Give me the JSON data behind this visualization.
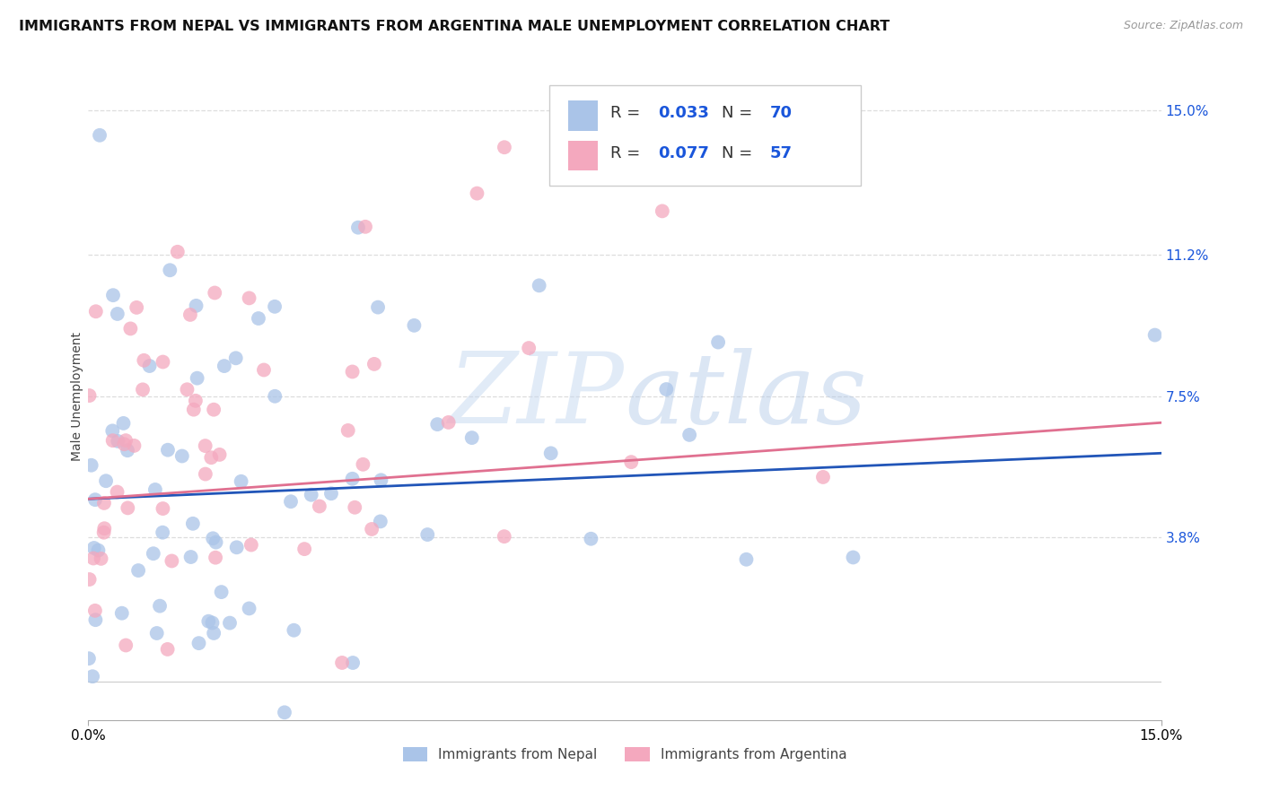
{
  "title": "IMMIGRANTS FROM NEPAL VS IMMIGRANTS FROM ARGENTINA MALE UNEMPLOYMENT CORRELATION CHART",
  "source": "Source: ZipAtlas.com",
  "ylabel": "Male Unemployment",
  "xlim": [
    0.0,
    0.15
  ],
  "ylim": [
    -0.01,
    0.16
  ],
  "xticks": [
    0.0,
    0.15
  ],
  "xticklabels": [
    "0.0%",
    "15.0%"
  ],
  "ytick_right_labels": [
    "15.0%",
    "11.2%",
    "7.5%",
    "3.8%"
  ],
  "ytick_right_values": [
    0.15,
    0.112,
    0.075,
    0.038
  ],
  "nepal_color": "#aac4e8",
  "argentina_color": "#f4a8be",
  "nepal_line_color": "#2155b8",
  "argentina_line_color": "#e07090",
  "nepal_R": 0.033,
  "nepal_N": 70,
  "argentina_R": 0.077,
  "argentina_N": 57,
  "legend_text_color": "#1a56db",
  "background_color": "#ffffff",
  "grid_color": "#dddddd",
  "title_fontsize": 11.5,
  "source_fontsize": 9,
  "axis_label_fontsize": 10,
  "tick_fontsize": 11,
  "watermark_zip_color": "#c8d8ef",
  "watermark_atlas_color": "#b8cce4"
}
